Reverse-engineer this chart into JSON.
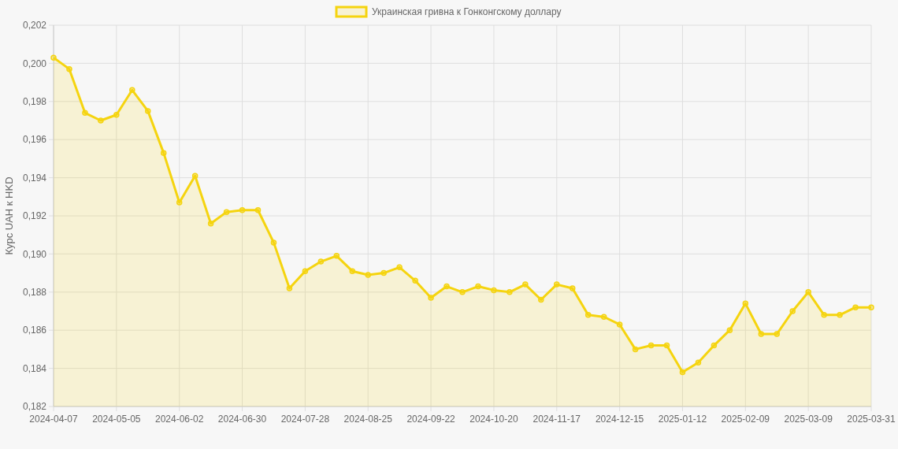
{
  "chart_data": {
    "type": "area",
    "ylabel": "Курс UAH к HKD",
    "categories": [
      "2024-04-07",
      null,
      null,
      null,
      "2024-05-05",
      null,
      null,
      null,
      "2024-06-02",
      null,
      null,
      null,
      "2024-06-30",
      null,
      null,
      null,
      "2024-07-28",
      null,
      null,
      null,
      "2024-08-25",
      null,
      null,
      null,
      "2024-09-22",
      null,
      null,
      null,
      "2024-10-20",
      null,
      null,
      null,
      "2024-11-17",
      null,
      null,
      null,
      "2024-12-15",
      null,
      null,
      null,
      "2025-01-12",
      null,
      null,
      null,
      "2025-02-09",
      null,
      null,
      null,
      "2025-03-09",
      null,
      null,
      null,
      "2025-03-31"
    ],
    "series": [
      {
        "name": "Украинская гривна к Гонконгскому доллару",
        "color": "#f5d40f",
        "values": [
          0.2003,
          0.1997,
          0.1974,
          0.197,
          0.1973,
          0.1986,
          0.1975,
          0.1953,
          0.1927,
          0.1941,
          0.1916,
          0.1922,
          0.1923,
          0.1923,
          0.1906,
          0.1882,
          0.1891,
          0.1896,
          0.1899,
          0.1891,
          0.1889,
          0.189,
          0.1893,
          0.1886,
          0.1877,
          0.1883,
          0.188,
          0.1883,
          0.1881,
          0.188,
          0.1884,
          0.1876,
          0.1884,
          0.1882,
          0.1868,
          0.1867,
          0.1863,
          0.185,
          0.1852,
          0.1852,
          0.1838,
          0.1843,
          0.1852,
          0.186,
          0.1874,
          0.1858,
          0.1858,
          0.187,
          0.188,
          0.1868,
          0.1868,
          0.1872,
          0.1872
        ]
      }
    ],
    "ylim": [
      0.182,
      0.202
    ],
    "yticks": [
      {
        "value": 0.182,
        "label": "0,182"
      },
      {
        "value": 0.184,
        "label": "0,184"
      },
      {
        "value": 0.186,
        "label": "0,186"
      },
      {
        "value": 0.188,
        "label": "0,188"
      },
      {
        "value": 0.19,
        "label": "0,190"
      },
      {
        "value": 0.192,
        "label": "0,192"
      },
      {
        "value": 0.194,
        "label": "0,194"
      },
      {
        "value": 0.196,
        "label": "0,196"
      },
      {
        "value": 0.198,
        "label": "0,198"
      },
      {
        "value": 0.2,
        "label": "0,200"
      },
      {
        "value": 0.202,
        "label": "0,202"
      }
    ],
    "grid": true,
    "legend": "top",
    "marker": "circle",
    "line_style": "solid"
  }
}
